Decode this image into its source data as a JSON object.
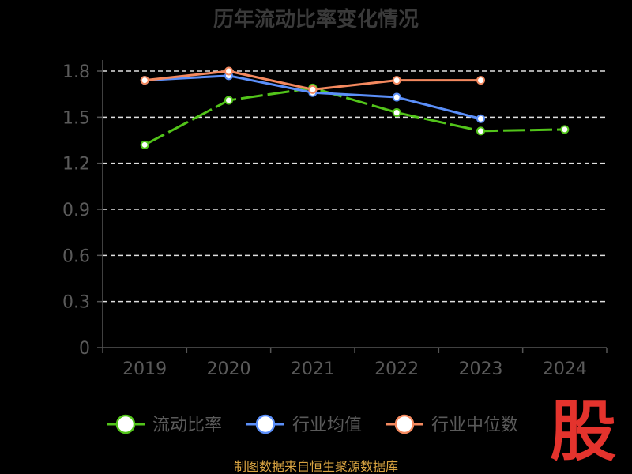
{
  "chart_data": {
    "type": "line",
    "title": "历年流动比率变化情况",
    "categories": [
      "2019",
      "2020",
      "2021",
      "2022",
      "2023",
      "2024"
    ],
    "y_ticks": [
      "0",
      "0.3",
      "0.6",
      "0.9",
      "1.2",
      "1.5",
      "1.8"
    ],
    "ylim": [
      0,
      1.8
    ],
    "grid": "horizontal-dashed",
    "legend_position": "bottom",
    "series": [
      {
        "name": "流动比率",
        "color": "#52c41a",
        "style": "dashed",
        "values": [
          1.32,
          1.61,
          1.69,
          1.53,
          1.41,
          1.42
        ]
      },
      {
        "name": "行业均值",
        "color": "#5b8ff9",
        "values": [
          1.74,
          1.77,
          1.66,
          1.63,
          1.49,
          null
        ]
      },
      {
        "name": "行业中位数",
        "color": "#f4895f",
        "values": [
          1.74,
          1.8,
          1.68,
          1.74,
          1.74,
          null
        ]
      }
    ]
  },
  "source_text": "制图数据来自恒生聚源数据库",
  "logo_text": "股"
}
